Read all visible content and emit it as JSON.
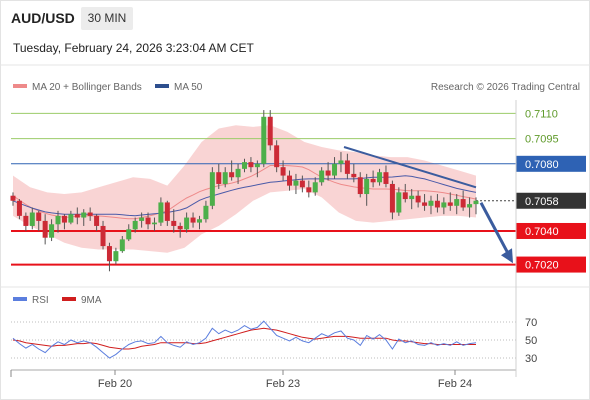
{
  "header": {
    "pair": "AUD/USD",
    "timeframe": "30 MIN",
    "datetime": "Tuesday, February 24, 2026 3:23:04 AM CET"
  },
  "legend": {
    "ma20": "MA 20 + Bollinger Bands",
    "ma50": "MA 50",
    "credit": "Research © 2026 Trading Central",
    "rsi": "RSI",
    "rsi_ma": "9MA"
  },
  "colors": {
    "up": "#4daf4a",
    "down": "#cc2a36",
    "bollinger_band": "#f7c6c6",
    "ma20": "#ee8a8a",
    "ma50": "#4a5aa8",
    "trend": "#3b5c9e",
    "rsi": "#5b7ede",
    "rsi_ma": "#d01e1e",
    "support": "#e8111a",
    "pivot": "#2e62b4",
    "resistance": "#9ccc6a",
    "last": "#333333"
  },
  "chart_data": [
    {
      "type": "candlestick",
      "title": "AUD/USD 30 MIN",
      "x_tick_labels": [
        "Feb 20",
        "Feb 23",
        "Feb 24"
      ],
      "ylim": [
        0.7012,
        0.7118
      ],
      "last_price": 0.7058,
      "levels": [
        {
          "label": "0.7110",
          "value": 0.711,
          "kind": "resistance"
        },
        {
          "label": "0.7095",
          "value": 0.7095,
          "kind": "resistance"
        },
        {
          "label": "0.7080",
          "value": 0.708,
          "kind": "pivot"
        },
        {
          "label": "0.7058",
          "value": 0.7058,
          "kind": "last"
        },
        {
          "label": "0.7040",
          "value": 0.704,
          "kind": "support"
        },
        {
          "label": "0.7020",
          "value": 0.702,
          "kind": "support"
        }
      ],
      "trend_line": [
        0.709,
        0.7066
      ],
      "forecast_target": 0.7022,
      "series": [
        {
          "name": "MA 20",
          "values": [
            0.7061,
            0.7054,
            0.705,
            0.7048,
            0.7049,
            0.7049,
            0.7048,
            0.7047,
            0.7049,
            0.7052,
            0.7059,
            0.7064,
            0.7067,
            0.7069,
            0.7073,
            0.7079,
            0.7079,
            0.7078,
            0.7072,
            0.7068,
            0.7066,
            0.7065,
            0.7065,
            0.7064,
            0.7064,
            0.7063,
            0.7061,
            0.7059
          ]
        },
        {
          "name": "MA 50",
          "values": [
            0.7058,
            0.7054,
            0.7051,
            0.705,
            0.705,
            0.705,
            0.705,
            0.7049,
            0.705,
            0.7051,
            0.7053,
            0.7059,
            0.7062,
            0.7065,
            0.7067,
            0.7069,
            0.707,
            0.7071,
            0.7071,
            0.7071,
            0.7071,
            0.7072,
            0.7072,
            0.7073,
            0.7071,
            0.7068,
            0.7065,
            0.7063
          ]
        },
        {
          "name": "Bollinger Bands",
          "upper": [
            0.7073,
            0.7066,
            0.7063,
            0.7062,
            0.7063,
            0.7066,
            0.7069,
            0.7072,
            0.7071,
            0.7067,
            0.7079,
            0.7093,
            0.7101,
            0.7103,
            0.7102,
            0.7103,
            0.7099,
            0.7093,
            0.709,
            0.7088,
            0.7087,
            0.7085,
            0.7084,
            0.7084,
            0.7082,
            0.7079,
            0.7076,
            0.7073
          ],
          "lower": [
            0.7049,
            0.7043,
            0.7038,
            0.7033,
            0.703,
            0.7029,
            0.7029,
            0.7029,
            0.7028,
            0.7027,
            0.703,
            0.7038,
            0.7043,
            0.705,
            0.7058,
            0.7063,
            0.7064,
            0.7065,
            0.706,
            0.7051,
            0.7046,
            0.7045,
            0.7046,
            0.7047,
            0.7048,
            0.7049,
            0.7049,
            0.7048
          ]
        }
      ],
      "candles": [
        [
          0.7061,
          0.7063,
          0.7055,
          0.7058
        ],
        [
          0.7058,
          0.7059,
          0.7047,
          0.7049
        ],
        [
          0.7049,
          0.7051,
          0.704,
          0.7043
        ],
        [
          0.7043,
          0.7054,
          0.7041,
          0.7051
        ],
        [
          0.7051,
          0.7052,
          0.704,
          0.7046
        ],
        [
          0.7046,
          0.705,
          0.7032,
          0.7036
        ],
        [
          0.7036,
          0.7047,
          0.7034,
          0.7044
        ],
        [
          0.7044,
          0.7052,
          0.7039,
          0.7049
        ],
        [
          0.7049,
          0.705,
          0.7041,
          0.7045
        ],
        [
          0.7045,
          0.7052,
          0.7044,
          0.705
        ],
        [
          0.705,
          0.7054,
          0.7044,
          0.7048
        ],
        [
          0.7048,
          0.7053,
          0.7043,
          0.7051
        ],
        [
          0.7051,
          0.7054,
          0.7046,
          0.7049
        ],
        [
          0.7049,
          0.705,
          0.704,
          0.7043
        ],
        [
          0.7043,
          0.7046,
          0.7029,
          0.7031
        ],
        [
          0.7031,
          0.7033,
          0.7016,
          0.7022
        ],
        [
          0.7022,
          0.703,
          0.702,
          0.7028
        ],
        [
          0.7028,
          0.7037,
          0.7027,
          0.7035
        ],
        [
          0.7035,
          0.7044,
          0.7034,
          0.7041
        ],
        [
          0.7041,
          0.7048,
          0.7039,
          0.7046
        ],
        [
          0.7046,
          0.7051,
          0.7042,
          0.7048
        ],
        [
          0.7048,
          0.7051,
          0.7041,
          0.7044
        ],
        [
          0.7044,
          0.7048,
          0.704,
          0.7045
        ],
        [
          0.7045,
          0.706,
          0.7043,
          0.7057
        ],
        [
          0.7057,
          0.7058,
          0.7043,
          0.7046
        ],
        [
          0.7046,
          0.7053,
          0.7039,
          0.7043
        ],
        [
          0.7043,
          0.7045,
          0.7036,
          0.7041
        ],
        [
          0.7041,
          0.7051,
          0.7039,
          0.7048
        ],
        [
          0.7048,
          0.7051,
          0.7042,
          0.7045
        ],
        [
          0.7045,
          0.7049,
          0.7041,
          0.7047
        ],
        [
          0.7047,
          0.7058,
          0.7045,
          0.7055
        ],
        [
          0.7055,
          0.7078,
          0.7053,
          0.7075
        ],
        [
          0.7075,
          0.708,
          0.7065,
          0.7068
        ],
        [
          0.7068,
          0.7078,
          0.7066,
          0.7075
        ],
        [
          0.7075,
          0.7082,
          0.707,
          0.7072
        ],
        [
          0.7072,
          0.708,
          0.7068,
          0.7077
        ],
        [
          0.7077,
          0.7083,
          0.7075,
          0.7081
        ],
        [
          0.7081,
          0.7084,
          0.7075,
          0.7078
        ],
        [
          0.7078,
          0.7082,
          0.7072,
          0.708
        ],
        [
          0.708,
          0.7112,
          0.7078,
          0.7108
        ],
        [
          0.7108,
          0.7112,
          0.7088,
          0.7091
        ],
        [
          0.7091,
          0.7094,
          0.7075,
          0.7078
        ],
        [
          0.7078,
          0.7082,
          0.707,
          0.7073
        ],
        [
          0.7073,
          0.7076,
          0.7064,
          0.7067
        ],
        [
          0.7067,
          0.7074,
          0.7062,
          0.707
        ],
        [
          0.707,
          0.7073,
          0.7063,
          0.7066
        ],
        [
          0.7066,
          0.707,
          0.706,
          0.7063
        ],
        [
          0.7063,
          0.7072,
          0.7061,
          0.7069
        ],
        [
          0.7069,
          0.7078,
          0.7067,
          0.7076
        ],
        [
          0.7076,
          0.7081,
          0.707,
          0.7073
        ],
        [
          0.7073,
          0.7084,
          0.7071,
          0.708
        ],
        [
          0.708,
          0.7087,
          0.7075,
          0.7082
        ],
        [
          0.7082,
          0.7086,
          0.7071,
          0.7074
        ],
        [
          0.7074,
          0.708,
          0.7069,
          0.7072
        ],
        [
          0.7072,
          0.7075,
          0.706,
          0.7062
        ],
        [
          0.7062,
          0.7074,
          0.7055,
          0.7071
        ],
        [
          0.7071,
          0.7076,
          0.7066,
          0.7069
        ],
        [
          0.7069,
          0.7077,
          0.7067,
          0.7075
        ],
        [
          0.7075,
          0.7079,
          0.7066,
          0.7068
        ],
        [
          0.7068,
          0.707,
          0.7047,
          0.7051
        ],
        [
          0.7051,
          0.7066,
          0.7049,
          0.7063
        ],
        [
          0.7063,
          0.7068,
          0.7057,
          0.7059
        ],
        [
          0.7059,
          0.7065,
          0.7053,
          0.7061
        ],
        [
          0.7061,
          0.7064,
          0.7054,
          0.7057
        ],
        [
          0.7057,
          0.7062,
          0.7052,
          0.7055
        ],
        [
          0.7055,
          0.7061,
          0.705,
          0.7058
        ],
        [
          0.7058,
          0.7062,
          0.7051,
          0.7054
        ],
        [
          0.7054,
          0.706,
          0.705,
          0.7057
        ],
        [
          0.7057,
          0.7063,
          0.7052,
          0.7055
        ],
        [
          0.7055,
          0.7062,
          0.705,
          0.7059
        ],
        [
          0.7059,
          0.7064,
          0.7052,
          0.7054
        ],
        [
          0.7054,
          0.706,
          0.7048,
          0.7056
        ],
        [
          0.7056,
          0.706,
          0.705,
          0.7058
        ]
      ]
    },
    {
      "type": "line",
      "title": "RSI",
      "y_ticks": [
        70,
        50,
        30
      ],
      "ylim": [
        20,
        80
      ],
      "series": [
        {
          "name": "RSI",
          "values": [
            52,
            46,
            41,
            45,
            40,
            36,
            43,
            48,
            45,
            50,
            47,
            49,
            47,
            42,
            36,
            30,
            34,
            40,
            45,
            48,
            49,
            46,
            47,
            54,
            47,
            44,
            42,
            48,
            45,
            47,
            52,
            63,
            57,
            61,
            58,
            61,
            66,
            62,
            64,
            71,
            63,
            55,
            52,
            49,
            53,
            49,
            47,
            52,
            57,
            54,
            58,
            60,
            52,
            50,
            44,
            55,
            51,
            56,
            50,
            40,
            51,
            47,
            49,
            45,
            44,
            47,
            44,
            46,
            44,
            48,
            44,
            46,
            47
          ]
        },
        {
          "name": "9MA",
          "values": [
            50,
            49,
            47,
            46,
            45,
            44,
            43,
            44,
            44,
            45,
            46,
            46,
            47,
            46,
            44,
            42,
            41,
            40,
            40,
            41,
            43,
            44,
            45,
            47,
            47,
            47,
            47,
            47,
            46,
            46,
            47,
            49,
            51,
            53,
            55,
            57,
            59,
            61,
            62,
            63,
            62,
            61,
            59,
            57,
            55,
            53,
            52,
            51,
            52,
            53,
            54,
            54,
            54,
            53,
            52,
            52,
            52,
            52,
            52,
            50,
            49,
            49,
            48,
            47,
            46,
            46,
            45,
            45,
            45,
            45,
            45,
            45,
            45
          ]
        }
      ]
    }
  ]
}
